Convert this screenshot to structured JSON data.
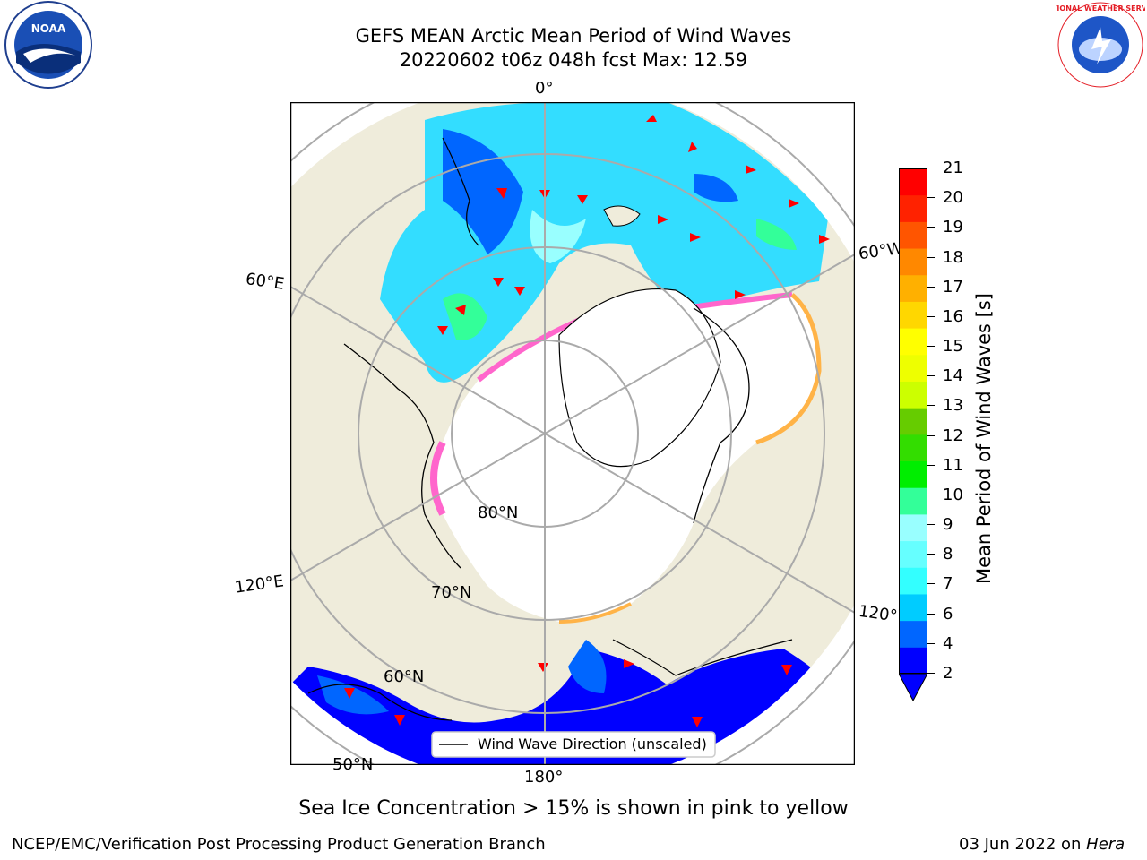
{
  "header": {
    "title_line1": "GEFS MEAN Arctic Mean Period of Wind Waves",
    "title_line2": "20220602 t06z 048h fcst   Max: 12.59"
  },
  "logos": {
    "left": "NOAA",
    "right": "NATIONAL WEATHER SERVICE"
  },
  "map": {
    "lon_labels": {
      "top": "0°",
      "left_upper": "60°E",
      "left_lower": "120°E",
      "bottom": "180°",
      "right_upper": "60°W",
      "right_lower": "120°W"
    },
    "lat_labels": {
      "lat80": "80°N",
      "lat70": "70°N",
      "lat60": "60°N",
      "lat50": "50°N"
    },
    "legend_label": "Wind Wave Direction (unscaled)",
    "colors": {
      "land": "#efecdb",
      "ocean_ice": "#ffffff",
      "ice_edge_pink": "#ff66cc",
      "ice_edge_orange": "#ffb347",
      "arrow": "#ff0000"
    }
  },
  "colorbar": {
    "label": "Mean Period of Wind Waves [s]",
    "ticks": [
      "2",
      "4",
      "6",
      "7",
      "8",
      "9",
      "10",
      "11",
      "12",
      "13",
      "14",
      "15",
      "16",
      "17",
      "18",
      "19",
      "20",
      "21"
    ],
    "colors": [
      "#0000ff",
      "#0066ff",
      "#00ccff",
      "#33ffff",
      "#66ffff",
      "#99ffff",
      "#33ff99",
      "#00ee00",
      "#33dd00",
      "#66cc00",
      "#ccff00",
      "#eeff00",
      "#ffff00",
      "#ffd700",
      "#ffb000",
      "#ff8800",
      "#ff5500",
      "#ff2200",
      "#ff0000"
    ]
  },
  "bottom_note": "Sea Ice Concentration > 15% is shown in pink to yellow",
  "footer": {
    "left": "NCEP/EMC/Verification Post Processing Product Generation Branch",
    "right_prefix": "03 Jun 2022 on ",
    "right_host": "Hera"
  }
}
